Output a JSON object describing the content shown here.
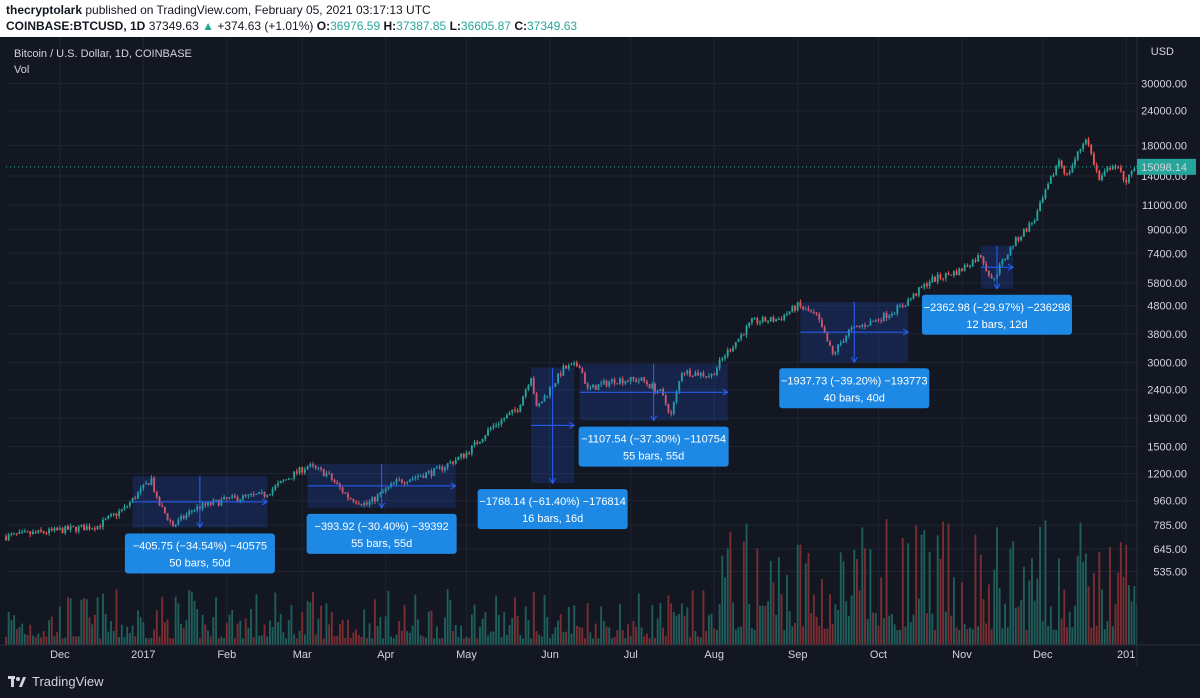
{
  "header": {
    "author": "thecryptolark",
    "published": "published on TradingView.com, February 05, 2021 03:17:13 UTC",
    "symbol": "COINBASE:BTCUSD, 1D",
    "last": "37349.63",
    "change": "+374.63 (+1.01%)",
    "o_label": "O:",
    "o": "36976.59",
    "h_label": "H:",
    "h": "37387.85",
    "l_label": "L:",
    "l": "36605.87",
    "c_label": "C:",
    "c": "37349.63"
  },
  "legend": {
    "title": "Bitcoin / U.S. Dollar, 1D, COINBASE",
    "vol": "Vol"
  },
  "footer": {
    "brand": "TradingView"
  },
  "colors": {
    "background": "#131722",
    "up": "#26a69a",
    "down": "#ef5350",
    "measure": "#2962ff",
    "measure_label": "#1e88e5"
  },
  "chart_data": {
    "type": "candlestick",
    "y_scale": "log",
    "currency": "USD",
    "ylim": [
      500,
      32000
    ],
    "y_ticks": [
      "30000.00",
      "24000.00",
      "18000.00",
      "14000.00",
      "11000.00",
      "9000.00",
      "7400.00",
      "5800.00",
      "4800.00",
      "3800.00",
      "3000.00",
      "2400.00",
      "1900.00",
      "1500.00",
      "1200.00",
      "960.00",
      "785.00",
      "645.00",
      "535.00"
    ],
    "y_tick_values": [
      30000,
      24000,
      18000,
      14000,
      11000,
      9000,
      7400,
      5800,
      4800,
      3800,
      3000,
      2400,
      1900,
      1500,
      1200,
      960,
      785,
      645,
      535
    ],
    "x_ticks": [
      "Dec",
      "2017",
      "Feb",
      "Mar",
      "Apr",
      "May",
      "Jun",
      "Jul",
      "Aug",
      "Sep",
      "Oct",
      "Nov",
      "Dec",
      "201"
    ],
    "x_tick_dates": [
      "2016-12-01",
      "2017-01-01",
      "2017-02-01",
      "2017-03-01",
      "2017-04-01",
      "2017-05-01",
      "2017-06-01",
      "2017-07-01",
      "2017-08-01",
      "2017-09-01",
      "2017-10-01",
      "2017-11-01",
      "2017-12-01",
      "2018-01-01"
    ],
    "x_range": [
      "2016-11-11",
      "2018-01-05"
    ],
    "last_price_label": "15098.14",
    "last_price": 15098.14,
    "price_path": [
      [
        "2016-11-11",
        715
      ],
      [
        "2016-11-25",
        740
      ],
      [
        "2016-12-05",
        760
      ],
      [
        "2016-12-15",
        780
      ],
      [
        "2016-12-25",
        900
      ],
      [
        "2017-01-04",
        1150
      ],
      [
        "2017-01-06",
        960
      ],
      [
        "2017-01-12",
        780
      ],
      [
        "2017-01-20",
        900
      ],
      [
        "2017-02-01",
        970
      ],
      [
        "2017-02-15",
        1010
      ],
      [
        "2017-02-25",
        1180
      ],
      [
        "2017-03-03",
        1280
      ],
      [
        "2017-03-10",
        1200
      ],
      [
        "2017-03-18",
        990
      ],
      [
        "2017-03-25",
        930
      ],
      [
        "2017-04-05",
        1120
      ],
      [
        "2017-04-20",
        1230
      ],
      [
        "2017-05-01",
        1420
      ],
      [
        "2017-05-10",
        1750
      ],
      [
        "2017-05-20",
        2050
      ],
      [
        "2017-05-25",
        2700
      ],
      [
        "2017-05-27",
        2050
      ],
      [
        "2017-06-06",
        2850
      ],
      [
        "2017-06-12",
        2950
      ],
      [
        "2017-06-15",
        2400
      ],
      [
        "2017-06-25",
        2600
      ],
      [
        "2017-07-05",
        2600
      ],
      [
        "2017-07-12",
        2350
      ],
      [
        "2017-07-16",
        1950
      ],
      [
        "2017-07-20",
        2800
      ],
      [
        "2017-07-31",
        2700
      ],
      [
        "2017-08-05",
        3200
      ],
      [
        "2017-08-15",
        4200
      ],
      [
        "2017-08-25",
        4300
      ],
      [
        "2017-09-01",
        4800
      ],
      [
        "2017-09-08",
        4400
      ],
      [
        "2017-09-14",
        3200
      ],
      [
        "2017-09-20",
        3900
      ],
      [
        "2017-10-01",
        4300
      ],
      [
        "2017-10-10",
        4800
      ],
      [
        "2017-10-20",
        5900
      ],
      [
        "2017-10-31",
        6400
      ],
      [
        "2017-11-08",
        7300
      ],
      [
        "2017-11-12",
        5900
      ],
      [
        "2017-11-20",
        8000
      ],
      [
        "2017-11-28",
        9800
      ],
      [
        "2017-12-07",
        16000
      ],
      [
        "2017-12-10",
        14000
      ],
      [
        "2017-12-17",
        19300
      ],
      [
        "2017-12-22",
        13500
      ],
      [
        "2017-12-27",
        15500
      ],
      [
        "2018-01-01",
        13500
      ],
      [
        "2018-01-05",
        15098
      ]
    ],
    "measurements": [
      {
        "label": "−405.75 (−34.54%) −40575",
        "sub": "50 bars, 50d",
        "start": "2016-12-28",
        "end": "2017-02-16",
        "from": 1175,
        "to": 770
      },
      {
        "label": "−393.92 (−30.40%) −39392",
        "sub": "55 bars, 55d",
        "start": "2017-03-03",
        "end": "2017-04-27",
        "from": 1300,
        "to": 905
      },
      {
        "label": "−1768.14 (−61.40%) −176814",
        "sub": "16 bars, 16d",
        "start": "2017-05-25",
        "end": "2017-06-10",
        "from": 2880,
        "to": 1110
      },
      {
        "label": "−1107.54 (−37.30%) −110754",
        "sub": "55 bars, 55d",
        "start": "2017-06-12",
        "end": "2017-08-06",
        "from": 2970,
        "to": 1860
      },
      {
        "label": "−1937.73 (−39.20%) −193773",
        "sub": "40 bars, 40d",
        "start": "2017-09-02",
        "end": "2017-10-12",
        "from": 4950,
        "to": 3010
      },
      {
        "label": "−2362.98 (−29.97%) −236298",
        "sub": "12 bars, 12d",
        "start": "2017-11-08",
        "end": "2017-11-20",
        "from": 7880,
        "to": 5520
      }
    ]
  }
}
